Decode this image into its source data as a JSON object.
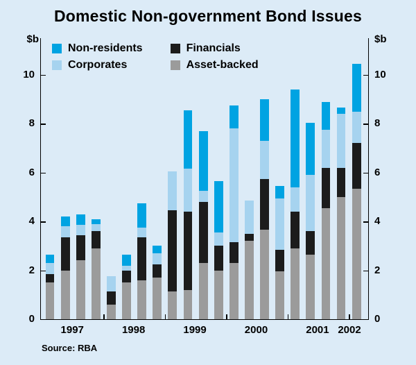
{
  "page": {
    "background": "#dcebf7"
  },
  "chart_data": {
    "type": "bar",
    "stacked": true,
    "title": "Domestic Non-government Bond Issues",
    "unit_label_left": "$b",
    "unit_label_right": "$b",
    "source": "Source: RBA",
    "ylim": [
      0,
      11.5
    ],
    "yticks": [
      0,
      2,
      4,
      6,
      8,
      10
    ],
    "grid": false,
    "legend_position": "top-inside",
    "x_year_labels": [
      "1997",
      "1998",
      "1999",
      "2000",
      "2001",
      "2002"
    ],
    "quarters": [
      "1997 Q1",
      "1997 Q2",
      "1997 Q3",
      "1997 Q4",
      "1998 Q1",
      "1998 Q2",
      "1998 Q3",
      "1998 Q4",
      "1999 Q1",
      "1999 Q2",
      "1999 Q3",
      "1999 Q4",
      "2000 Q1",
      "2000 Q2",
      "2000 Q3",
      "2000 Q4",
      "2001 Q1",
      "2001 Q2",
      "2001 Q3",
      "2001 Q4",
      "2002 Q1"
    ],
    "series": [
      {
        "name": "Asset-backed",
        "color": "#9b9b9b",
        "values": [
          1.5,
          2.0,
          2.4,
          2.9,
          0.6,
          1.5,
          1.6,
          1.7,
          1.15,
          1.2,
          2.3,
          2.0,
          2.3,
          3.2,
          3.65,
          1.95,
          2.9,
          2.65,
          4.55,
          5.0,
          5.35
        ]
      },
      {
        "name": "Financials",
        "color": "#1c1c1c",
        "values": [
          0.35,
          1.35,
          1.05,
          0.7,
          0.55,
          0.5,
          1.75,
          0.55,
          3.3,
          3.2,
          2.5,
          1.0,
          0.85,
          0.3,
          2.1,
          0.9,
          1.5,
          0.95,
          1.65,
          1.2,
          1.85
        ]
      },
      {
        "name": "Corporates",
        "color": "#a6d3ef",
        "values": [
          0.45,
          0.45,
          0.4,
          0.3,
          0.6,
          0.2,
          0.4,
          0.45,
          1.6,
          1.75,
          0.45,
          0.55,
          4.65,
          1.35,
          1.55,
          2.1,
          1.0,
          2.3,
          1.55,
          2.2,
          1.3
        ]
      },
      {
        "name": "Non-residents",
        "color": "#00a3e2",
        "values": [
          0.35,
          0.4,
          0.45,
          0.2,
          0.0,
          0.45,
          1.0,
          0.3,
          0.0,
          2.4,
          2.45,
          2.1,
          0.95,
          0.0,
          1.7,
          0.5,
          4.0,
          2.15,
          1.15,
          0.25,
          1.95
        ]
      }
    ]
  }
}
